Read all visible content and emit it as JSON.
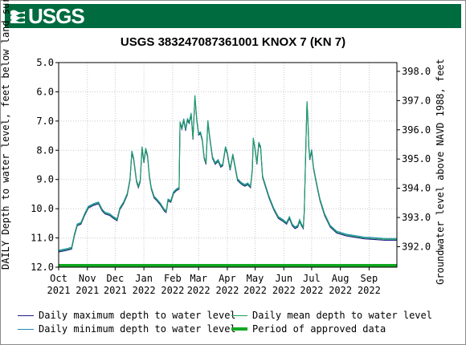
{
  "header": {
    "agency": "USGS",
    "title": "USGS 383247087361001 KNOX 7 (KN 7)"
  },
  "colors": {
    "banner": "#006b3f",
    "max_line": "#1c1c8c",
    "min_line": "#1f8fb0",
    "mean_line": "#1e9e5a",
    "approved": "#11a820"
  },
  "chart_data": {
    "type": "line",
    "title": "USGS 383247087361001 KNOX 7 (KN 7)",
    "ylabel_left": "DAILY Depth to water level, feet below land surface",
    "ylabel_right": "Groundwater level above NAVD 1988, feet",
    "ylim_left": [
      12.0,
      5.0
    ],
    "ylim_right": [
      391.3,
      398.3
    ],
    "left_ticks": [
      "5.0",
      "6.0",
      "7.0",
      "8.0",
      "9.0",
      "10.0",
      "11.0",
      "12.0"
    ],
    "right_ticks": [
      "398.0",
      "397.0",
      "396.0",
      "395.0",
      "394.0",
      "393.0",
      "392.0"
    ],
    "x_ticks": [
      {
        "month": "Oct",
        "year": "2021"
      },
      {
        "month": "Nov",
        "year": "2021"
      },
      {
        "month": "Dec",
        "year": "2021"
      },
      {
        "month": "Jan",
        "year": "2022"
      },
      {
        "month": "Feb",
        "year": "2022"
      },
      {
        "month": "Mar",
        "year": "2022"
      },
      {
        "month": "Apr",
        "year": "2022"
      },
      {
        "month": "May",
        "year": "2022"
      },
      {
        "month": "Jun",
        "year": "2022"
      },
      {
        "month": "Jul",
        "year": "2022"
      },
      {
        "month": "Aug",
        "year": "2022"
      },
      {
        "month": "Sep",
        "year": "2022"
      }
    ],
    "xlim_days": [
      0,
      365
    ],
    "month_start_days": [
      0,
      31,
      61,
      92,
      123,
      151,
      182,
      212,
      243,
      273,
      304,
      335
    ],
    "grid": true,
    "series": [
      {
        "name": "Daily maximum depth to water level",
        "color": "#1c1c8c"
      },
      {
        "name": "Daily minimum depth to water level",
        "color": "#1f8fb0"
      },
      {
        "name": "Daily mean depth to water level",
        "color": "#1e9e5a"
      },
      {
        "name": "Period of approved data",
        "color": "#11a820"
      }
    ],
    "depth_points": [
      [
        0,
        11.45
      ],
      [
        8,
        11.4
      ],
      [
        14,
        11.35
      ],
      [
        17,
        10.9
      ],
      [
        20,
        10.55
      ],
      [
        24,
        10.5
      ],
      [
        28,
        10.2
      ],
      [
        32,
        9.95
      ],
      [
        38,
        9.85
      ],
      [
        43,
        9.8
      ],
      [
        47,
        10.05
      ],
      [
        50,
        10.15
      ],
      [
        55,
        10.2
      ],
      [
        59,
        10.3
      ],
      [
        63,
        10.38
      ],
      [
        66,
        10.0
      ],
      [
        70,
        9.8
      ],
      [
        74,
        9.5
      ],
      [
        77,
        9.0
      ],
      [
        79,
        8.05
      ],
      [
        81,
        8.3
      ],
      [
        84,
        9.05
      ],
      [
        86,
        9.25
      ],
      [
        88,
        9.05
      ],
      [
        90,
        7.9
      ],
      [
        92,
        8.4
      ],
      [
        94,
        7.95
      ],
      [
        96,
        8.2
      ],
      [
        98,
        8.9
      ],
      [
        100,
        9.3
      ],
      [
        103,
        9.6
      ],
      [
        106,
        9.7
      ],
      [
        110,
        9.85
      ],
      [
        114,
        10.05
      ],
      [
        116,
        10.1
      ],
      [
        118,
        9.7
      ],
      [
        121,
        9.75
      ],
      [
        124,
        9.45
      ],
      [
        127,
        9.35
      ],
      [
        130,
        9.3
      ],
      [
        131,
        7.05
      ],
      [
        133,
        7.25
      ],
      [
        135,
        6.95
      ],
      [
        137,
        7.3
      ],
      [
        139,
        6.95
      ],
      [
        141,
        7.05
      ],
      [
        143,
        6.75
      ],
      [
        145,
        7.6
      ],
      [
        147,
        6.15
      ],
      [
        149,
        6.95
      ],
      [
        151,
        7.45
      ],
      [
        153,
        7.4
      ],
      [
        155,
        7.65
      ],
      [
        157,
        8.25
      ],
      [
        159,
        8.45
      ],
      [
        161,
        7.0
      ],
      [
        163,
        7.55
      ],
      [
        166,
        8.25
      ],
      [
        169,
        8.45
      ],
      [
        172,
        8.35
      ],
      [
        175,
        8.55
      ],
      [
        177,
        8.5
      ],
      [
        180,
        7.9
      ],
      [
        182,
        8.1
      ],
      [
        185,
        8.65
      ],
      [
        188,
        8.15
      ],
      [
        190,
        8.5
      ],
      [
        193,
        9.0
      ],
      [
        196,
        9.1
      ],
      [
        198,
        9.15
      ],
      [
        201,
        9.2
      ],
      [
        204,
        9.15
      ],
      [
        207,
        9.25
      ],
      [
        209,
        8.65
      ],
      [
        210,
        7.6
      ],
      [
        212,
        7.95
      ],
      [
        214,
        8.45
      ],
      [
        216,
        7.75
      ],
      [
        218,
        7.9
      ],
      [
        220,
        8.9
      ],
      [
        223,
        9.2
      ],
      [
        227,
        9.6
      ],
      [
        232,
        10.0
      ],
      [
        237,
        10.3
      ],
      [
        242,
        10.4
      ],
      [
        246,
        10.5
      ],
      [
        249,
        10.3
      ],
      [
        252,
        10.55
      ],
      [
        255,
        10.65
      ],
      [
        258,
        10.6
      ],
      [
        260,
        10.4
      ],
      [
        262,
        10.55
      ],
      [
        264,
        10.65
      ],
      [
        265,
        10.1
      ],
      [
        267,
        7.5
      ],
      [
        268,
        6.35
      ],
      [
        269,
        7.0
      ],
      [
        270,
        7.9
      ],
      [
        271,
        8.3
      ],
      [
        273,
        8.0
      ],
      [
        275,
        8.6
      ],
      [
        278,
        9.1
      ],
      [
        282,
        9.7
      ],
      [
        287,
        10.2
      ],
      [
        293,
        10.6
      ],
      [
        300,
        10.8
      ],
      [
        310,
        10.9
      ],
      [
        320,
        10.95
      ],
      [
        330,
        11.0
      ],
      [
        340,
        11.02
      ],
      [
        352,
        11.05
      ],
      [
        365,
        11.05
      ]
    ]
  },
  "legend": {
    "max_label": "Daily maximum depth to water level",
    "min_label": "Daily minimum depth to water level",
    "mean_label": "Daily mean depth to water level",
    "approved_label": "Period of approved data"
  }
}
